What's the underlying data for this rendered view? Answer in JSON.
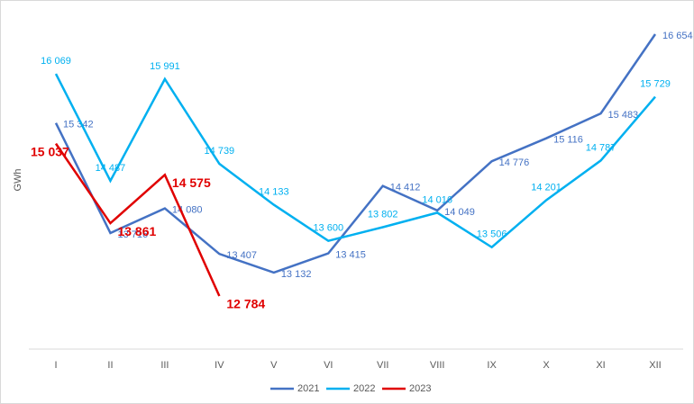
{
  "chart_data": {
    "type": "line",
    "y_label": "GWh",
    "categories": [
      "I",
      "II",
      "III",
      "IV",
      "V",
      "VI",
      "VII",
      "VIII",
      "IX",
      "X",
      "XI",
      "XII"
    ],
    "ylim": [
      12000,
      17000
    ],
    "legend": "bottom",
    "series": [
      {
        "name": "2021",
        "color": "#4472c4",
        "values": [
          15342,
          13716,
          14080,
          13407,
          13132,
          13415,
          14412,
          14049,
          14776,
          15116,
          15483,
          16654
        ],
        "value_labels": [
          "15 342",
          "13 716",
          "14 080",
          "13 407",
          "13 132",
          "13 415",
          "14 412",
          "14 049",
          "14 776",
          "15 116",
          "15 483",
          "16 654"
        ]
      },
      {
        "name": "2022",
        "color": "#00b0f0",
        "values": [
          16069,
          14487,
          15991,
          14739,
          14133,
          13600,
          13802,
          14016,
          13506,
          14201,
          14787,
          15729
        ],
        "value_labels": [
          "16 069",
          "14 487",
          "15 991",
          "14 739",
          "14 133",
          "13 600",
          "13 802",
          "14 016",
          "13 506",
          "14 201",
          "14 787",
          "15 729"
        ]
      },
      {
        "name": "2023",
        "color": "#e00000",
        "values": [
          15037,
          13861,
          14575,
          12784,
          null,
          null,
          null,
          null,
          null,
          null,
          null,
          null
        ],
        "value_labels": [
          "15 037",
          "13 861",
          "14 575",
          "12 784",
          null,
          null,
          null,
          null,
          null,
          null,
          null,
          null
        ]
      }
    ]
  }
}
